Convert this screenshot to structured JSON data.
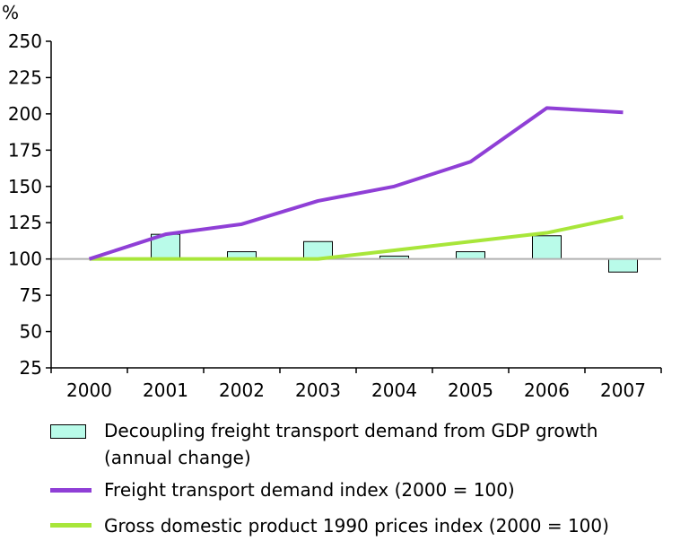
{
  "chart_data": {
    "type": "bar+line",
    "y_unit_label": "%",
    "categories": [
      "2000",
      "2001",
      "2002",
      "2003",
      "2004",
      "2005",
      "2006",
      "2007"
    ],
    "ylim": [
      25,
      250
    ],
    "yticks": [
      25,
      50,
      75,
      100,
      125,
      150,
      175,
      200,
      225,
      250
    ],
    "baseline": 100,
    "series": [
      {
        "name": "Decoupling freight transport demand from GDP growth (annual change)",
        "kind": "bar",
        "color": "#b9fbe9",
        "values": [
          null,
          117,
          105,
          112,
          102,
          105,
          116,
          91
        ]
      },
      {
        "name": "Freight transport demand index (2000 = 100)",
        "kind": "line",
        "color": "#8f3fd6",
        "values": [
          100,
          117,
          124,
          140,
          150,
          167,
          204,
          201
        ]
      },
      {
        "name": "Gross domestic product 1990 prices index (2000 = 100)",
        "kind": "line",
        "color": "#a8e63a",
        "values": [
          100,
          100,
          100,
          100,
          106,
          112,
          118,
          129
        ]
      }
    ]
  },
  "legend": {
    "bar_line1": "Decoupling freight transport demand from GDP growth",
    "bar_line2": "(annual change)",
    "freight": "Freight transport demand index (2000 = 100)",
    "gdp": "Gross domestic product 1990 prices index (2000 = 100)"
  }
}
